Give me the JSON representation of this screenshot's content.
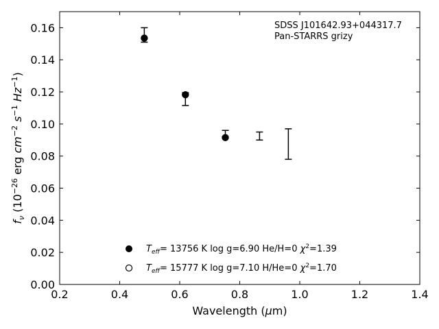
{
  "chart_data": {
    "type": "scatter",
    "annotation": [
      "SDSS J101642.93+044317.7",
      "Pan-STARRS grizy"
    ],
    "xlabel": "Wavelength (μm)",
    "ylabel": "fν (10⁻²⁶ erg cm⁻² s⁻¹ Hz⁻¹)",
    "xlim": [
      0.2,
      1.4
    ],
    "ylim": [
      0.0,
      0.17
    ],
    "xticks": [
      "0.2",
      "0.4",
      "0.6",
      "0.8",
      "1.0",
      "1.2",
      "1.4"
    ],
    "yticks": [
      "0.00",
      "0.02",
      "0.04",
      "0.06",
      "0.08",
      "0.10",
      "0.12",
      "0.14",
      "0.16"
    ],
    "grid": false,
    "legend_position": "bottom-center",
    "observed": {
      "x": [
        0.482,
        0.619,
        0.752,
        0.866,
        0.962
      ],
      "y": [
        0.1555,
        0.1155,
        0.0935,
        0.0925,
        0.0875
      ],
      "err": [
        0.0045,
        0.004,
        0.0025,
        0.0025,
        0.0095
      ]
    },
    "series": [
      {
        "name": "Teff= 13756 K  log g=6.90  He/H=0  χ²=1.39",
        "marker": "filled-circle",
        "x": [
          0.482,
          0.619,
          0.752
        ],
        "y": [
          0.1535,
          0.1182,
          0.0915
        ]
      },
      {
        "name": "Teff= 15777 K  log g=7.10  H/He=0  χ²=1.70",
        "marker": "open-circle",
        "x": [
          0.482,
          0.619,
          0.752
        ],
        "y": [
          0.1535,
          0.1182,
          0.0915
        ]
      }
    ],
    "legend": [
      {
        "model": "13756 K",
        "logg": "log g=6.90",
        "comp": "He/H=0",
        "chi": "1.39"
      },
      {
        "model": "15777 K",
        "logg": "log g=7.10",
        "comp": "H/He=0",
        "chi": "1.70"
      }
    ]
  }
}
